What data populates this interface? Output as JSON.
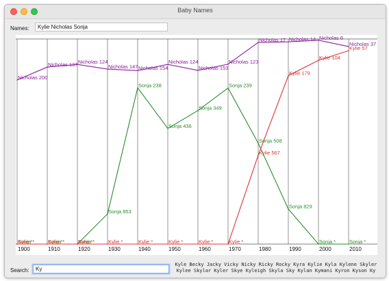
{
  "window": {
    "title": "Baby Names",
    "colors": {
      "close": "#fc605b",
      "minimize": "#fdbc40",
      "maximize": "#34c84a"
    }
  },
  "names": {
    "label": "Names:",
    "value": "Kylie Nicholas Sonja"
  },
  "search": {
    "label": "Search:",
    "value": "Ky",
    "suggestions": [
      "Kyle Becky Jacky Vicky Nicky Ricky Rocky Kyra Kylie Kyla Kylene Skyler",
      "Kylee Skylar Kyler Skye Kyleigh Skyla Sky Kylan Kymani Kyron Kyson Ky"
    ]
  },
  "chart_data": {
    "type": "line",
    "decades": [
      "1900",
      "1910",
      "1920",
      "1930",
      "1940",
      "1950",
      "1960",
      "1970",
      "1980",
      "1990",
      "2000",
      "2010"
    ],
    "ylim": [
      0,
      1000
    ],
    "grid": true,
    "series": [
      {
        "name": "Nicholas",
        "color": "#8a1a9a",
        "ranks": [
          200,
          137,
          124,
          147,
          154,
          124,
          153,
          123,
          17,
          14,
          6,
          37
        ],
        "labels": [
          "Nicholas 200",
          "Nicholas 137",
          "Nicholas 124",
          "Nicholas 147",
          "Nicholas 154",
          "Nicholas 124",
          "Nicholas 153",
          "Nicholas 123",
          "Nicholas 17",
          "Nicholas 14",
          "Nicholas 6",
          "Nicholas 37"
        ]
      },
      {
        "name": "Sonja",
        "color": "#2a8a2a",
        "ranks": [
          1000,
          1000,
          1000,
          853,
          238,
          436,
          349,
          239,
          508,
          829,
          1000,
          1000
        ],
        "labels": [
          "Sonja *",
          "Sonja *",
          "Sonja *",
          "Sonja 853",
          "Sonja 238",
          "Sonja 436",
          "Sonja 349",
          "Sonja 239",
          "Sonja 508",
          "Sonja 829",
          "Sonja *",
          "Sonja *"
        ]
      },
      {
        "name": "Kylie",
        "color": "#e03030",
        "ranks": [
          1000,
          1000,
          1000,
          1000,
          1000,
          1000,
          1000,
          1000,
          567,
          179,
          104,
          57
        ],
        "labels": [
          "Kylie *",
          "Kylie *",
          "Kylie *",
          "Kylie *",
          "Kylie *",
          "Kylie *",
          "Kylie *",
          "Kylie *",
          "Kylie 567",
          "Kylie 179",
          "Kylie 104",
          "Kylie 57"
        ]
      }
    ]
  }
}
